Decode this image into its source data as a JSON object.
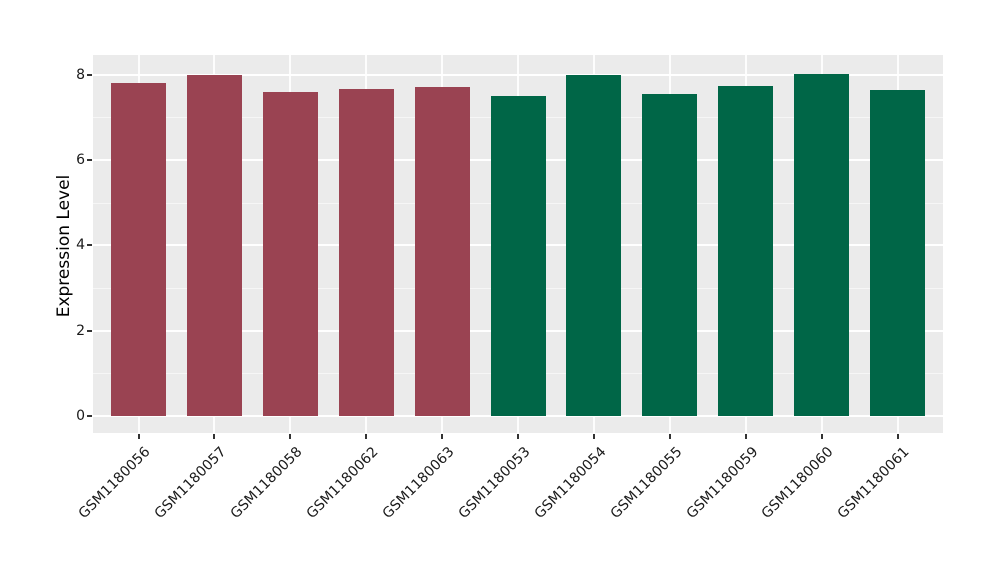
{
  "figure": {
    "background": "#ffffff",
    "panel_background": "#ebebeb",
    "grid_color": "#ffffff",
    "tick_mark_color": "#333333",
    "tick_label_color": "#1a1a1a"
  },
  "chart_data": {
    "type": "bar",
    "title": "",
    "xlabel": "",
    "ylabel": "Expression Level",
    "ylim": [
      -0.4,
      8.45
    ],
    "yticks": [
      0,
      2,
      4,
      6,
      8
    ],
    "yticks_minor": [
      1,
      3,
      5,
      7
    ],
    "grid": "major+minor, white on gray panel, vertical major line at each category",
    "legend_position": "none",
    "x_label_rotation_deg": 45,
    "categories": [
      "GSM1180056",
      "GSM1180057",
      "GSM1180058",
      "GSM1180062",
      "GSM1180063",
      "GSM1180053",
      "GSM1180054",
      "GSM1180055",
      "GSM1180059",
      "GSM1180060",
      "GSM1180061"
    ],
    "values": [
      7.8,
      7.98,
      7.59,
      7.66,
      7.71,
      7.49,
      8.0,
      7.54,
      7.73,
      8.02,
      7.63
    ],
    "bar_groups": [
      "A",
      "A",
      "A",
      "A",
      "A",
      "B",
      "B",
      "B",
      "B",
      "B",
      "B"
    ],
    "group_colors": {
      "A": "#9a4352",
      "B": "#006647"
    }
  }
}
